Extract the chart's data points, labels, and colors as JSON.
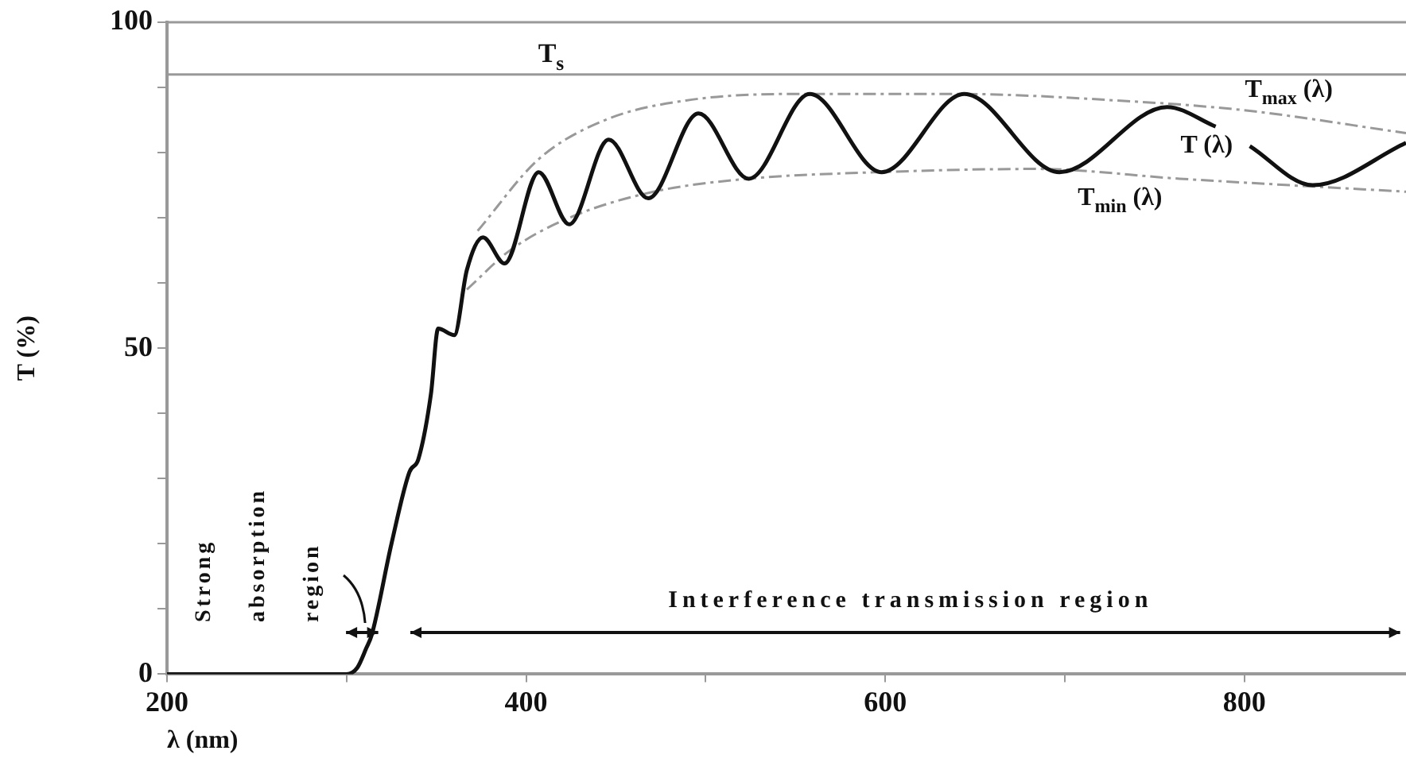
{
  "chart_data": {
    "type": "line",
    "xlabel": "λ (nm)",
    "ylabel": "T (%)",
    "xlim": [
      200,
      890
    ],
    "xticks": [
      200,
      {
        "value": 300,
        "label": null
      },
      400,
      {
        "value": 500,
        "label": null
      },
      600,
      {
        "value": 700,
        "label": null
      },
      800
    ],
    "ylim": [
      0,
      100
    ],
    "yticks": [
      0,
      {
        "value": 10,
        "label": null
      },
      {
        "value": 20,
        "label": null
      },
      {
        "value": 30,
        "label": null
      },
      {
        "value": 40,
        "label": null
      },
      50,
      {
        "value": 60,
        "label": null
      },
      {
        "value": 70,
        "label": null
      },
      {
        "value": 80,
        "label": null
      },
      {
        "value": 90,
        "label": null
      },
      100
    ],
    "grid": false,
    "legend": false,
    "marker": "none",
    "series": [
      {
        "name": "T (λ)",
        "color": "#111111",
        "line_style": "solid",
        "x": [
          200,
          250,
          300,
          306,
          311,
          314,
          325,
          335,
          340,
          347,
          351,
          360,
          367,
          376,
          388,
          407,
          424,
          446,
          468,
          496,
          524,
          558,
          598,
          644,
          697,
          757,
          784,
          795,
          803,
          838,
          890
        ],
        "values": [
          0,
          0,
          0,
          1,
          4,
          6,
          20,
          31,
          33,
          43,
          53,
          52,
          62,
          67,
          63,
          77,
          69,
          82,
          73,
          86,
          76,
          89,
          77,
          89,
          77,
          87,
          84,
          null,
          81,
          75,
          81.5
        ]
      },
      {
        "name": "T$_{max}$ (λ)",
        "color": "#999999",
        "line_style": "dashed",
        "x": [
          373,
          407,
          444,
          489,
          551,
          640,
          729,
          800,
          890
        ],
        "values": [
          68,
          79,
          85,
          88,
          89,
          89,
          88,
          86.5,
          83
        ]
      },
      {
        "name": "T$_{min}$ (λ)",
        "color": "#999999",
        "line_style": "dashed",
        "x": [
          367,
          391,
          424,
          471,
          524,
          596,
          684,
          764,
          890
        ],
        "values": [
          59,
          65,
          70,
          74,
          76,
          77,
          77.5,
          76,
          74
        ]
      }
    ],
    "ref_lines": [
      {
        "axis": "y",
        "value": 92,
        "label": "T$_{s}$",
        "color": "#999999"
      }
    ],
    "annotations": [
      "Strong absorption region",
      "Interference transmission region"
    ]
  }
}
